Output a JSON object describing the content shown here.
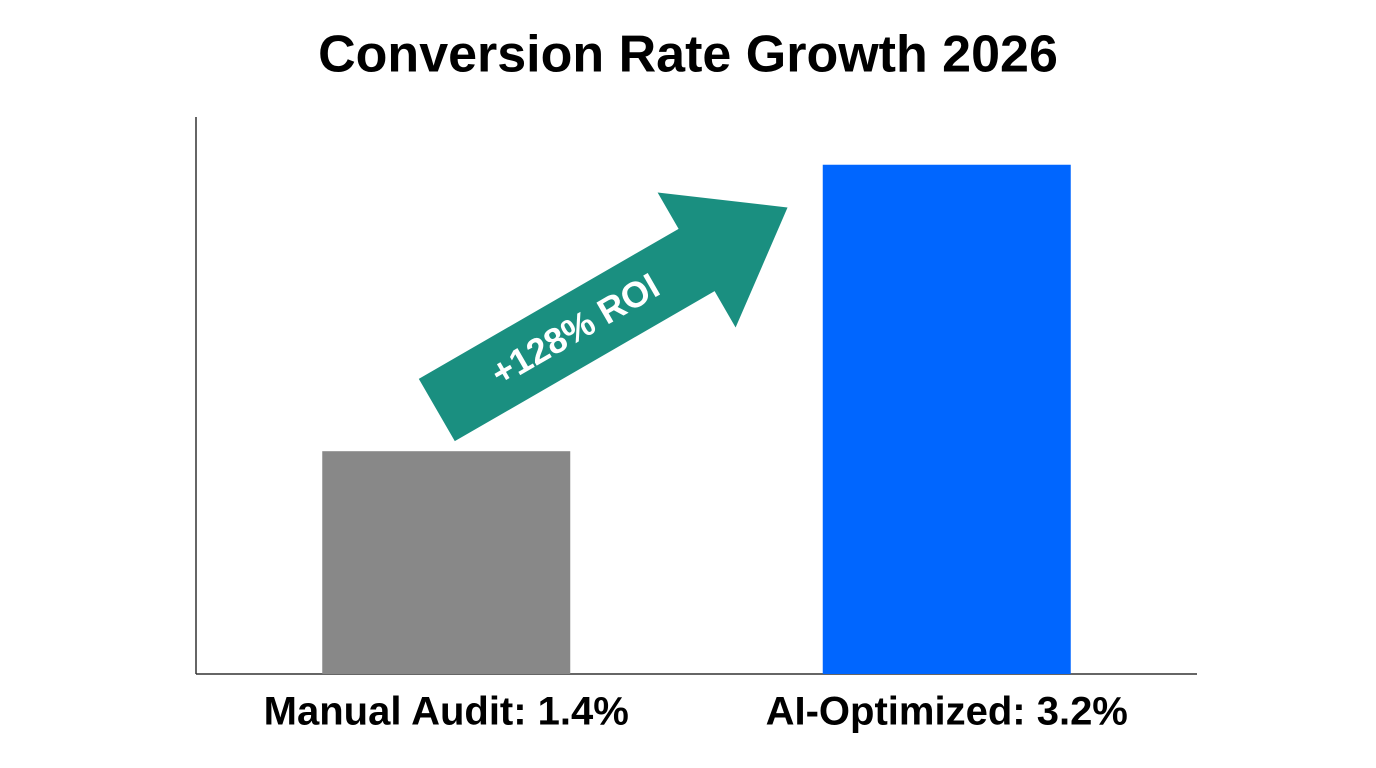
{
  "chart_data": {
    "type": "bar",
    "title": "Conversion Rate Growth 2026",
    "categories": [
      "Manual Audit: 1.4%",
      "AI-Optimized: 3.2%"
    ],
    "values": [
      1.4,
      3.2
    ],
    "colors": [
      "#888888",
      "#0066ff"
    ],
    "ylim": [
      0,
      3.5
    ],
    "annotation": "+128% ROI"
  }
}
